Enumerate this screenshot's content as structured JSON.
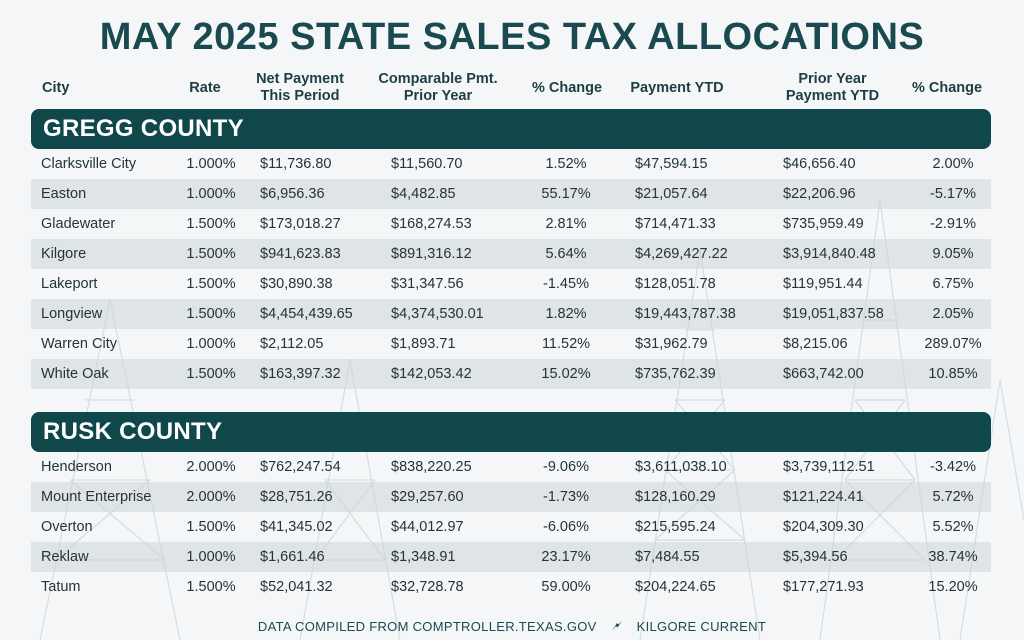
{
  "title": "MAY 2025 STATE SALES TAX ALLOCATIONS",
  "headers": {
    "city": "City",
    "rate": "Rate",
    "net_line1": "Net Payment",
    "net_line2": "This Period",
    "comp_line1": "Comparable Pmt.",
    "comp_line2": "Prior Year",
    "pct1": "% Change",
    "ytd": "Payment YTD",
    "prior_ytd_line1": "Prior Year",
    "prior_ytd_line2": "Payment YTD",
    "pct2": "% Change"
  },
  "counties": [
    {
      "name": "GREGG COUNTY",
      "rows": [
        {
          "city": "Clarksville City",
          "rate": "1.000%",
          "net": "$11,736.80",
          "comp": "$11,560.70",
          "pct1": "1.52%",
          "ytd": "$47,594.15",
          "prior_ytd": "$46,656.40",
          "pct2": "2.00%"
        },
        {
          "city": "Easton",
          "rate": "1.000%",
          "net": "$6,956.36",
          "comp": "$4,482.85",
          "pct1": "55.17%",
          "ytd": "$21,057.64",
          "prior_ytd": "$22,206.96",
          "pct2": "-5.17%"
        },
        {
          "city": "Gladewater",
          "rate": "1.500%",
          "net": "$173,018.27",
          "comp": "$168,274.53",
          "pct1": "2.81%",
          "ytd": "$714,471.33",
          "prior_ytd": "$735,959.49",
          "pct2": "-2.91%"
        },
        {
          "city": "Kilgore",
          "rate": "1.500%",
          "net": "$941,623.83",
          "comp": "$891,316.12",
          "pct1": "5.64%",
          "ytd": "$4,269,427.22",
          "prior_ytd": "$3,914,840.48",
          "pct2": "9.05%"
        },
        {
          "city": "Lakeport",
          "rate": "1.500%",
          "net": "$30,890.38",
          "comp": "$31,347.56",
          "pct1": "-1.45%",
          "ytd": "$128,051.78",
          "prior_ytd": "$119,951.44",
          "pct2": "6.75%"
        },
        {
          "city": "Longview",
          "rate": "1.500%",
          "net": "$4,454,439.65",
          "comp": "$4,374,530.01",
          "pct1": "1.82%",
          "ytd": "$19,443,787.38",
          "prior_ytd": "$19,051,837.58",
          "pct2": "2.05%"
        },
        {
          "city": "Warren City",
          "rate": "1.000%",
          "net": "$2,112.05",
          "comp": "$1,893.71",
          "pct1": "11.52%",
          "ytd": "$31,962.79",
          "prior_ytd": "$8,215.06",
          "pct2": "289.07%"
        },
        {
          "city": "White Oak",
          "rate": "1.500%",
          "net": "$163,397.32",
          "comp": "$142,053.42",
          "pct1": "15.02%",
          "ytd": "$735,762.39",
          "prior_ytd": "$663,742.00",
          "pct2": "10.85%"
        }
      ]
    },
    {
      "name": "RUSK COUNTY",
      "rows": [
        {
          "city": "Henderson",
          "rate": "2.000%",
          "net": "$762,247.54",
          "comp": "$838,220.25",
          "pct1": "-9.06%",
          "ytd": "$3,611,038.10",
          "prior_ytd": "$3,739,112.51",
          "pct2": "-3.42%"
        },
        {
          "city": "Mount Enterprise",
          "rate": "2.000%",
          "net": "$28,751.26",
          "comp": "$29,257.60",
          "pct1": "-1.73%",
          "ytd": "$128,160.29",
          "prior_ytd": "$121,224.41",
          "pct2": "5.72%"
        },
        {
          "city": "Overton",
          "rate": "1.500%",
          "net": "$41,345.02",
          "comp": "$44,012.97",
          "pct1": "-6.06%",
          "ytd": "$215,595.24",
          "prior_ytd": "$204,309.30",
          "pct2": "5.52%"
        },
        {
          "city": "Reklaw",
          "rate": "1.000%",
          "net": "$1,661.46",
          "comp": "$1,348.91",
          "pct1": "23.17%",
          "ytd": "$7,484.55",
          "prior_ytd": "$5,394.56",
          "pct2": "38.74%"
        },
        {
          "city": "Tatum",
          "rate": "1.500%",
          "net": "$52,041.32",
          "comp": "$32,728.78",
          "pct1": "59.00%",
          "ytd": "$204,224.65",
          "prior_ytd": "$177,271.93",
          "pct2": "15.20%"
        }
      ]
    }
  ],
  "footer": {
    "source": "DATA COMPILED FROM COMPTROLLER.TEXAS.GOV",
    "brand": "KILGORE CURRENT",
    "separator_icon": "lightning-bolt-icon"
  },
  "colors": {
    "title": "#1a4a4f",
    "county_bar": "#0f474b",
    "row_shade": "#cdd6d9"
  }
}
